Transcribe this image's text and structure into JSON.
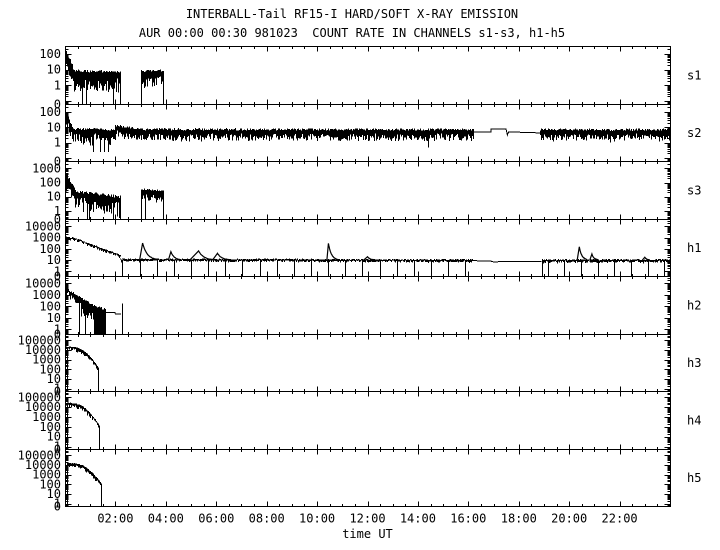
{
  "colors": {
    "foreground": "#000000",
    "background": "#ffffff"
  },
  "chart_data": {
    "type": "line",
    "title": "INTERBALL-Tail RF15-I HARD/SOFT X-RAY EMISSION",
    "subtitle": "AUR 00:00 00:30 981023  COUNT RATE IN CHANNELS s1-s3, h1-h5",
    "xlabel": "time UT",
    "x_axis": {
      "range_hours": [
        0,
        24
      ],
      "major_tick_hours": 2,
      "minor_tick_hours": 0.5,
      "ticks": [
        {
          "hour": 2,
          "label": "02:00"
        },
        {
          "hour": 4,
          "label": "04:00"
        },
        {
          "hour": 6,
          "label": "06:00"
        },
        {
          "hour": 8,
          "label": "08:00"
        },
        {
          "hour": 10,
          "label": "10:00"
        },
        {
          "hour": 12,
          "label": "12:00"
        },
        {
          "hour": 14,
          "label": "14:00"
        },
        {
          "hour": 16,
          "label": "16:00"
        },
        {
          "hour": 18,
          "label": "18:00"
        },
        {
          "hour": 20,
          "label": "20:00"
        },
        {
          "hour": 22,
          "label": "22:00"
        }
      ]
    },
    "panels": [
      {
        "label": "s1",
        "vtop": 300,
        "vbot": 0.06,
        "yticks": [
          {
            "label": "100",
            "exp": 2
          },
          {
            "label": "10",
            "exp": 1
          },
          {
            "label": "1",
            "exp": 0
          },
          {
            "label": "0",
            "exp": null
          }
        ],
        "segments": [
          {
            "type": "noiseband",
            "t0": 0.03,
            "t1": 0.35,
            "hi0": 150,
            "hi1": 9,
            "hi_jit": 0.25,
            "lo_div": 0.7,
            "lo_jit": 0.7,
            "floor_p": 0.02
          },
          {
            "type": "noiseband",
            "t0": 0.35,
            "t1": 2.17,
            "hi0": 9,
            "hi1": 7,
            "hi_jit": 0.2,
            "lo_div": 0.45,
            "lo_jit": 0.9,
            "floor_p": 0.05
          },
          {
            "type": "vline",
            "t": 2.17,
            "v0": "floor",
            "v1": 7
          },
          {
            "type": "vline",
            "t": 3.0,
            "v0": "floor",
            "v1": 4
          },
          {
            "type": "noiseband",
            "t0": 3.0,
            "t1": 3.88,
            "hi0": 8,
            "hi1": 9,
            "hi_jit": 0.15,
            "lo_div": 0.4,
            "lo_jit": 0.7,
            "floor_p": 0.04
          },
          {
            "type": "vline",
            "t": 3.88,
            "v0": "floor",
            "v1": 6
          }
        ]
      },
      {
        "label": "s2",
        "vtop": 300,
        "vbot": 0.06,
        "yticks": [
          {
            "label": "100",
            "exp": 2
          },
          {
            "label": "10",
            "exp": 1
          },
          {
            "label": "1",
            "exp": 0
          },
          {
            "label": "0",
            "exp": null
          }
        ],
        "segments": [
          {
            "type": "noiseband",
            "t0": 0.0,
            "t1": 0.3,
            "hi0": 120,
            "hi1": 8,
            "hi_jit": 0.2,
            "lo_div": 0.35,
            "lo_jit": 0.5,
            "floor_p": 0
          },
          {
            "type": "noiseband",
            "t0": 0.3,
            "t1": 2.0,
            "hi0": 8,
            "hi1": 7,
            "hi_jit": 0.15,
            "lo_div": 0.3,
            "lo_jit": 0.8,
            "floor_p": 0.1,
            "drop_to": 0.25
          },
          {
            "type": "noiseband",
            "t0": 2.0,
            "t1": 2.75,
            "hi0": 13,
            "hi1": 9,
            "hi_jit": 0.15,
            "lo_div": 0.35,
            "lo_jit": 0.4,
            "floor_p": 0.01,
            "drop_to": 0.6
          },
          {
            "type": "noiseband",
            "t0": 2.75,
            "t1": 16.2,
            "hi0": 7.5,
            "hi1": 7,
            "hi_jit": 0.15,
            "lo_div": 0.3,
            "lo_jit": 0.45,
            "floor_p": 0.006,
            "drop_to": 0.5
          },
          {
            "type": "line",
            "points": [
              [
                16.2,
                4.8
              ],
              [
                16.9,
                4.8
              ],
              [
                16.9,
                7.5
              ],
              [
                17.5,
                7.5
              ],
              [
                17.55,
                3.2
              ],
              [
                17.6,
                5.0
              ],
              [
                18.85,
                4.3
              ]
            ]
          },
          {
            "type": "noiseband",
            "t0": 18.85,
            "t1": 24,
            "hi0": 7,
            "hi1": 7,
            "hi_jit": 0.15,
            "lo_div": 0.3,
            "lo_jit": 0.45,
            "floor_p": 0.004,
            "drop_to": 0.6
          }
        ]
      },
      {
        "label": "s3",
        "vtop": 3000,
        "vbot": 0.25,
        "yticks": [
          {
            "label": "1000",
            "exp": 3
          },
          {
            "label": "100",
            "exp": 2
          },
          {
            "label": "10",
            "exp": 1
          },
          {
            "label": "1",
            "exp": 0
          },
          {
            "label": "0",
            "exp": null
          }
        ],
        "segments": [
          {
            "type": "noiseband",
            "t0": 0.03,
            "t1": 0.4,
            "hi0": 400,
            "hi1": 30,
            "hi_jit": 0.2,
            "lo_div": 0.5,
            "lo_jit": 0.8,
            "floor_p": 0.02
          },
          {
            "type": "noiseband",
            "t0": 0.4,
            "t1": 2.17,
            "hi0": 25,
            "hi1": 10,
            "hi_jit": 0.2,
            "lo_div": 0.4,
            "lo_jit": 1.0,
            "floor_p": 0.06
          },
          {
            "type": "vline",
            "t": 2.17,
            "v0": "floor",
            "v1": 10
          },
          {
            "type": "vline",
            "t": 3.0,
            "v0": "floor",
            "v1": 20
          },
          {
            "type": "noiseband",
            "t0": 3.0,
            "t1": 3.88,
            "hi0": 35,
            "hi1": 25,
            "hi_jit": 0.12,
            "lo_div": 0.3,
            "lo_jit": 0.5,
            "floor_p": 0.02
          },
          {
            "type": "vline",
            "t": 3.88,
            "v0": "floor",
            "v1": 20
          }
        ]
      },
      {
        "label": "h1",
        "vtop": 40000,
        "vbot": 0.35,
        "yticks": [
          {
            "label": "10000",
            "exp": 4
          },
          {
            "label": "1000",
            "exp": 3
          },
          {
            "label": "100",
            "exp": 2
          },
          {
            "label": "10",
            "exp": 1
          },
          {
            "label": "1",
            "exp": 0
          },
          {
            "label": "0",
            "exp": null
          }
        ],
        "segments": [
          {
            "type": "noiseband",
            "t0": 0.03,
            "t1": 0.3,
            "hi0": 1100,
            "hi1": 1000,
            "hi_jit": 0.1,
            "lo_div": 0.12,
            "lo_jit": 0.15,
            "floor_p": 0
          },
          {
            "type": "noiseband",
            "t0": 0.3,
            "t1": 2.2,
            "hi0": 1000,
            "hi1": 28,
            "hi_jit": 0.08,
            "lo_div": 0.1,
            "lo_jit": 0.18,
            "floor_p": 0
          },
          {
            "type": "noiseband",
            "t0": 2.2,
            "t1": 16.15,
            "hi0": 13,
            "hi1": 11,
            "hi_jit": 0.1,
            "lo_div": 0.12,
            "lo_jit": 0.15,
            "floor_p": 0
          },
          {
            "type": "dropouts",
            "t0": 2.28,
            "t1": 16.15,
            "dt": 0.68,
            "v": 10
          },
          {
            "type": "bump",
            "t": 3.08,
            "base": 10,
            "peak": 320,
            "rise": 0.12,
            "fall": 0.55
          },
          {
            "type": "bump",
            "t": 4.2,
            "base": 10,
            "peak": 55,
            "rise": 0.1,
            "fall": 0.4
          },
          {
            "type": "bump",
            "t": 5.3,
            "base": 10,
            "peak": 65,
            "rise": 0.35,
            "fall": 0.6
          },
          {
            "type": "bump",
            "t": 6.05,
            "base": 10,
            "peak": 40,
            "rise": 0.2,
            "fall": 0.5
          },
          {
            "type": "bump",
            "t": 10.45,
            "base": 10,
            "peak": 300,
            "rise": 0.06,
            "fall": 0.35
          },
          {
            "type": "bump",
            "t": 12.0,
            "base": 10,
            "peak": 20,
            "rise": 0.15,
            "fall": 0.3
          },
          {
            "type": "line",
            "points": [
              [
                16.15,
                9
              ],
              [
                16.9,
                8
              ],
              [
                17.05,
                6.5
              ],
              [
                17.3,
                7.8
              ],
              [
                18.9,
                7.2
              ]
            ]
          },
          {
            "type": "vline",
            "t": 18.92,
            "v0": "floor",
            "v1": 9
          },
          {
            "type": "noiseband",
            "t0": 18.92,
            "t1": 24,
            "hi0": 11,
            "hi1": 11,
            "hi_jit": 0.12,
            "lo_div": 0.12,
            "lo_jit": 0.18,
            "floor_p": 0
          },
          {
            "type": "dropouts",
            "t0": 19.15,
            "t1": 24,
            "dt": 0.66,
            "v": 10
          },
          {
            "type": "bump",
            "t": 20.4,
            "base": 10,
            "peak": 150,
            "rise": 0.08,
            "fall": 0.3
          },
          {
            "type": "bump",
            "t": 20.9,
            "base": 10,
            "peak": 35,
            "rise": 0.08,
            "fall": 0.25
          },
          {
            "type": "bump",
            "t": 23.0,
            "base": 10,
            "peak": 18,
            "rise": 0.1,
            "fall": 0.2
          }
        ]
      },
      {
        "label": "h2",
        "vtop": 40000,
        "vbot": 0.35,
        "yticks": [
          {
            "label": "10000",
            "exp": 4
          },
          {
            "label": "1000",
            "exp": 3
          },
          {
            "label": "100",
            "exp": 2
          },
          {
            "label": "10",
            "exp": 1
          },
          {
            "label": "1",
            "exp": 0
          },
          {
            "label": "0",
            "exp": null
          }
        ],
        "segments": [
          {
            "type": "noiseband",
            "t0": 0.03,
            "t1": 0.55,
            "hi0": 3500,
            "hi1": 700,
            "hi_jit": 0.15,
            "lo_div": 0.25,
            "lo_jit": 0.5,
            "floor_p": 0.01
          },
          {
            "type": "noiseband",
            "t0": 0.55,
            "t1": 1.15,
            "hi0": 700,
            "hi1": 110,
            "hi_jit": 0.15,
            "lo_div": 0.35,
            "lo_jit": 1.4,
            "floor_p": 0.08
          },
          {
            "type": "noiseband",
            "t0": 1.15,
            "t1": 1.6,
            "hi0": 100,
            "hi1": 60,
            "hi_jit": 0.2,
            "lo_div": 3.0,
            "lo_jit": 2.0,
            "floor_p": 0.75
          },
          {
            "type": "line",
            "points": [
              [
                1.6,
                30
              ],
              [
                1.98,
                30
              ],
              [
                2.0,
                21
              ],
              [
                2.22,
                21
              ]
            ]
          },
          {
            "type": "vline",
            "t": 2.28,
            "v0": "floor",
            "v1": 180
          }
        ]
      },
      {
        "label": "h3",
        "vtop": 400000,
        "vbot": 0.5,
        "yticks": [
          {
            "label": "100000",
            "exp": 5
          },
          {
            "label": "10000",
            "exp": 4
          },
          {
            "label": "1000",
            "exp": 3
          },
          {
            "label": "100",
            "exp": 2
          },
          {
            "label": "10",
            "exp": 1
          },
          {
            "label": "1",
            "exp": 0
          },
          {
            "label": "0",
            "exp": null
          }
        ],
        "segments": [
          {
            "type": "vline",
            "t": 0.06,
            "v0": "floor",
            "v1": 20000
          },
          {
            "type": "noiseband",
            "t0": 0.05,
            "t1": 0.35,
            "hi0": 22000,
            "hi1": 20000,
            "hi_jit": 0.1,
            "lo_div": 0.15,
            "lo_jit": 0.3,
            "floor_p": 0
          },
          {
            "type": "noiseband",
            "t0": 0.35,
            "t1": 1.32,
            "hi0": 20000,
            "hi1": 150,
            "hi_jit": 0.08,
            "lo_div": 0.15,
            "lo_jit": 0.35,
            "floor_p": 0,
            "curve": 1.8
          },
          {
            "type": "vline",
            "t": 1.32,
            "v0": "floor",
            "v1": 150
          }
        ]
      },
      {
        "label": "h4",
        "vtop": 400000,
        "vbot": 0.5,
        "yticks": [
          {
            "label": "100000",
            "exp": 5
          },
          {
            "label": "10000",
            "exp": 4
          },
          {
            "label": "1000",
            "exp": 3
          },
          {
            "label": "100",
            "exp": 2
          },
          {
            "label": "10",
            "exp": 1
          },
          {
            "label": "1",
            "exp": 0
          },
          {
            "label": "0",
            "exp": null
          }
        ],
        "segments": [
          {
            "type": "vline",
            "t": 0.06,
            "v0": "floor",
            "v1": 26000
          },
          {
            "type": "noiseband",
            "t0": 0.05,
            "t1": 0.35,
            "hi0": 28000,
            "hi1": 24000,
            "hi_jit": 0.1,
            "lo_div": 0.15,
            "lo_jit": 0.3,
            "floor_p": 0
          },
          {
            "type": "noiseband",
            "t0": 0.35,
            "t1": 1.34,
            "hi0": 24000,
            "hi1": 140,
            "hi_jit": 0.08,
            "lo_div": 0.15,
            "lo_jit": 0.35,
            "floor_p": 0,
            "curve": 1.8
          },
          {
            "type": "vline",
            "t": 1.34,
            "v0": "floor",
            "v1": 140
          }
        ]
      },
      {
        "label": "h5",
        "vtop": 400000,
        "vbot": 0.5,
        "yticks": [
          {
            "label": "100000",
            "exp": 5
          },
          {
            "label": "10000",
            "exp": 4
          },
          {
            "label": "1000",
            "exp": 3
          },
          {
            "label": "100",
            "exp": 2
          },
          {
            "label": "10",
            "exp": 1
          },
          {
            "label": "1",
            "exp": 0
          },
          {
            "label": "0",
            "exp": null
          }
        ],
        "segments": [
          {
            "type": "vline",
            "t": 0.07,
            "v0": "floor",
            "v1": 15000
          },
          {
            "type": "noiseband",
            "t0": 0.06,
            "t1": 0.4,
            "hi0": 17000,
            "hi1": 14000,
            "hi_jit": 0.1,
            "lo_div": 0.15,
            "lo_jit": 0.3,
            "floor_p": 0
          },
          {
            "type": "noiseband",
            "t0": 0.4,
            "t1": 1.42,
            "hi0": 14000,
            "hi1": 120,
            "hi_jit": 0.08,
            "lo_div": 0.15,
            "lo_jit": 0.35,
            "floor_p": 0,
            "curve": 1.8
          },
          {
            "type": "vline",
            "t": 1.42,
            "v0": "floor",
            "v1": 120
          }
        ]
      }
    ]
  }
}
